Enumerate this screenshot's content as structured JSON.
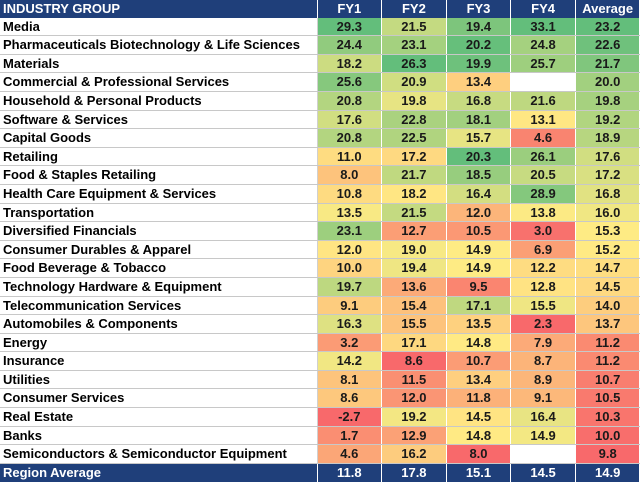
{
  "chart_data": {
    "type": "table",
    "header": [
      "INDUSTRY GROUP",
      "FY1",
      "FY2",
      "FY3",
      "FY4",
      "Average"
    ],
    "rows": [
      {
        "label": "Media",
        "values": [
          29.3,
          21.5,
          19.4,
          33.1,
          23.2
        ]
      },
      {
        "label": "Pharmaceuticals Biotechnology & Life Sciences",
        "values": [
          24.4,
          23.1,
          20.2,
          24.8,
          22.6
        ]
      },
      {
        "label": "Materials",
        "values": [
          18.2,
          26.3,
          19.9,
          25.7,
          21.7
        ]
      },
      {
        "label": "Commercial & Professional Services",
        "values": [
          25.6,
          20.9,
          13.4,
          null,
          20.0
        ]
      },
      {
        "label": "Household & Personal Products",
        "values": [
          20.8,
          19.8,
          16.8,
          21.6,
          19.8
        ]
      },
      {
        "label": "Software & Services",
        "values": [
          17.6,
          22.8,
          18.1,
          13.1,
          19.2
        ]
      },
      {
        "label": "Capital Goods",
        "values": [
          20.8,
          22.5,
          15.7,
          4.6,
          18.9
        ]
      },
      {
        "label": "Retailing",
        "values": [
          11.0,
          17.2,
          20.3,
          26.1,
          17.6
        ]
      },
      {
        "label": "Food & Staples Retailing",
        "values": [
          8.0,
          21.7,
          18.5,
          20.5,
          17.2
        ]
      },
      {
        "label": "Health Care Equipment & Services",
        "values": [
          10.8,
          18.2,
          16.4,
          28.9,
          16.8
        ]
      },
      {
        "label": "Transportation",
        "values": [
          13.5,
          21.5,
          12.0,
          13.8,
          16.0
        ]
      },
      {
        "label": "Diversified Financials",
        "values": [
          23.1,
          12.7,
          10.5,
          3.0,
          15.3
        ]
      },
      {
        "label": "Consumer Durables & Apparel",
        "values": [
          12.0,
          19.0,
          14.9,
          6.9,
          15.2
        ]
      },
      {
        "label": "Food Beverage & Tobacco",
        "values": [
          10.0,
          19.4,
          14.9,
          12.2,
          14.7
        ]
      },
      {
        "label": "Technology Hardware & Equipment",
        "values": [
          19.7,
          13.6,
          9.5,
          12.8,
          14.5
        ]
      },
      {
        "label": "Telecommunication Services",
        "values": [
          9.1,
          15.4,
          17.1,
          15.5,
          14.0
        ]
      },
      {
        "label": "Automobiles & Components",
        "values": [
          16.3,
          15.5,
          13.5,
          2.3,
          13.7
        ]
      },
      {
        "label": "Energy",
        "values": [
          3.2,
          17.1,
          14.8,
          7.9,
          11.2
        ]
      },
      {
        "label": "Insurance",
        "values": [
          14.2,
          8.6,
          10.7,
          8.7,
          11.2
        ]
      },
      {
        "label": "Utilities",
        "values": [
          8.1,
          11.5,
          13.4,
          8.9,
          10.7
        ]
      },
      {
        "label": "Consumer Services",
        "values": [
          8.6,
          12.0,
          11.8,
          9.1,
          10.5
        ]
      },
      {
        "label": "Real Estate",
        "values": [
          -2.7,
          19.2,
          14.5,
          16.4,
          10.3
        ]
      },
      {
        "label": "Banks",
        "values": [
          1.7,
          12.9,
          14.8,
          14.9,
          10.0
        ]
      },
      {
        "label": "Semiconductors & Semiconductor Equipment",
        "values": [
          4.6,
          16.2,
          8.0,
          null,
          9.8
        ]
      }
    ],
    "footer": {
      "label": "Region Average",
      "values": [
        11.8,
        17.8,
        15.1,
        14.5,
        14.9
      ]
    },
    "color_scale": {
      "low": "#f8696b",
      "mid": "#ffeb84",
      "high": "#63be7b"
    }
  }
}
